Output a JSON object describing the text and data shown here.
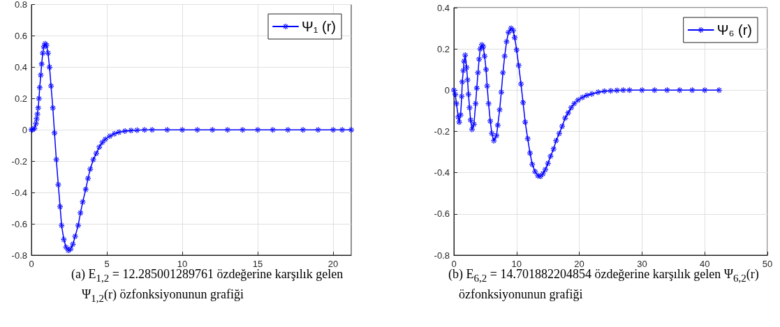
{
  "chart_data": [
    {
      "type": "line",
      "x": [
        0,
        0.1,
        0.2,
        0.3,
        0.35,
        0.4,
        0.45,
        0.5,
        0.55,
        0.62,
        0.68,
        0.75,
        0.82,
        0.9,
        1.0,
        1.1,
        1.2,
        1.3,
        1.42,
        1.53,
        1.65,
        1.78,
        1.9,
        2.0,
        2.15,
        2.3,
        2.45,
        2.6,
        2.75,
        2.9,
        3.1,
        3.25,
        3.4,
        3.6,
        3.75,
        3.9,
        4.1,
        4.3,
        4.5,
        4.7,
        4.9,
        5.2,
        5.5,
        5.8,
        6.2,
        6.6,
        7.0,
        7.5,
        8,
        9,
        10,
        11,
        12,
        13,
        14,
        15,
        16,
        17,
        18,
        19,
        20,
        20.6,
        21.2
      ],
      "series": [
        {
          "name": "Ψ₁ (r)",
          "color": "#0000ff",
          "values": [
            0,
            0.002,
            0.01,
            0.04,
            0.07,
            0.1,
            0.14,
            0.2,
            0.27,
            0.35,
            0.42,
            0.49,
            0.53,
            0.55,
            0.54,
            0.49,
            0.4,
            0.28,
            0.14,
            -0.02,
            -0.19,
            -0.35,
            -0.49,
            -0.61,
            -0.7,
            -0.75,
            -0.77,
            -0.76,
            -0.73,
            -0.68,
            -0.61,
            -0.53,
            -0.46,
            -0.38,
            -0.31,
            -0.25,
            -0.19,
            -0.15,
            -0.11,
            -0.08,
            -0.06,
            -0.04,
            -0.025,
            -0.015,
            -0.008,
            -0.004,
            -0.002,
            0,
            0,
            0,
            0,
            0,
            0,
            0,
            0,
            0,
            0,
            0,
            0,
            0,
            0,
            0,
            0
          ]
        }
      ],
      "xlim": [
        0,
        21.2
      ],
      "xticks": [
        0,
        5,
        10,
        15,
        20
      ],
      "ylim": [
        -0.8,
        0.8
      ],
      "yticks": [
        -0.8,
        -0.6,
        -0.4,
        -0.2,
        0,
        0.2,
        0.4,
        0.6,
        0.8
      ],
      "grid": true,
      "legend": "top right",
      "marker": "cross",
      "line_style": "solid",
      "annotations": [
        "(a) E$_{1,2}$ = 12.285001289761 özdeğerine karşılık gelen Ψ$_{1,2}$(r) özfonksiyonunun grafiği"
      ]
    },
    {
      "type": "line",
      "x": [
        0,
        0.22,
        0.4,
        0.7,
        0.85,
        1.07,
        1.25,
        1.33,
        1.5,
        1.62,
        1.8,
        2.03,
        2.18,
        2.32,
        2.5,
        2.66,
        2.9,
        3.2,
        3.47,
        3.65,
        3.84,
        4.02,
        4.2,
        4.46,
        4.68,
        4.9,
        5.13,
        5.3,
        5.53,
        5.8,
        6.05,
        6.38,
        6.8,
        7.0,
        7.3,
        7.56,
        7.82,
        8.1,
        8.4,
        8.7,
        9.1,
        9.45,
        9.7,
        10.0,
        10.33,
        10.7,
        11.03,
        11.37,
        11.77,
        12.14,
        12.5,
        12.95,
        13.4,
        13.8,
        14.2,
        14.58,
        15.0,
        15.42,
        15.9,
        16.3,
        16.8,
        17.27,
        17.75,
        18.23,
        18.7,
        19.2,
        19.8,
        20.5,
        21.2,
        22,
        23,
        24,
        25,
        26,
        27,
        28,
        30,
        32,
        34,
        36,
        38,
        40,
        42.3
      ],
      "series": [
        {
          "name": "Ψ₆ (r)",
          "color": "#0000ff",
          "values": [
            0,
            -0.02,
            -0.065,
            -0.13,
            -0.155,
            -0.12,
            -0.03,
            0.04,
            0.095,
            0.14,
            0.17,
            0.11,
            0.05,
            -0.02,
            -0.085,
            -0.145,
            -0.19,
            -0.165,
            -0.065,
            0.01,
            0.085,
            0.15,
            0.2,
            0.22,
            0.21,
            0.165,
            0.1,
            0.02,
            -0.065,
            -0.15,
            -0.21,
            -0.245,
            -0.22,
            -0.17,
            -0.095,
            -0.01,
            0.085,
            0.165,
            0.235,
            0.28,
            0.3,
            0.29,
            0.255,
            0.195,
            0.12,
            0.03,
            -0.06,
            -0.155,
            -0.235,
            -0.305,
            -0.36,
            -0.395,
            -0.415,
            -0.418,
            -0.405,
            -0.385,
            -0.355,
            -0.32,
            -0.285,
            -0.245,
            -0.21,
            -0.175,
            -0.135,
            -0.11,
            -0.085,
            -0.065,
            -0.048,
            -0.035,
            -0.025,
            -0.018,
            -0.01,
            -0.005,
            -0.003,
            -0.001,
            0,
            0,
            0,
            0,
            0,
            0,
            0,
            0,
            0
          ]
        }
      ],
      "xlim": [
        0,
        50
      ],
      "xticks": [
        0,
        10,
        20,
        30,
        40,
        50
      ],
      "ylim": [
        -0.8,
        0.4
      ],
      "yticks": [
        -0.8,
        -0.6,
        -0.4,
        -0.2,
        0,
        0.2,
        0.4
      ],
      "grid": true,
      "legend": "top right",
      "marker": "cross",
      "line_style": "solid",
      "annotations": [
        "(b) E$_{6,2}$ = 14.701882204854 özdeğerine karşılık gelen Ψ$_{6,2}$(r) özfonksiyonunun grafiği"
      ]
    }
  ]
}
